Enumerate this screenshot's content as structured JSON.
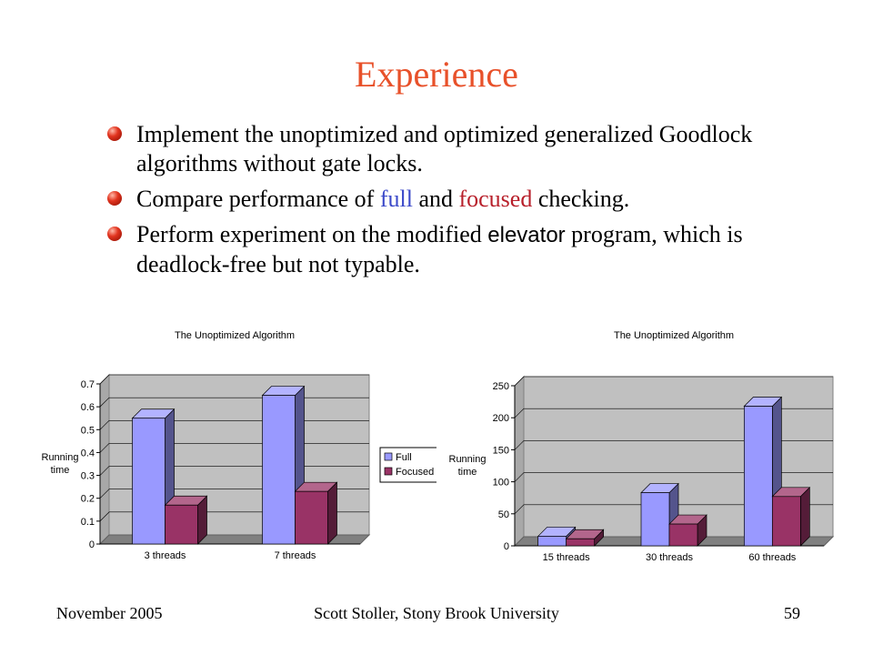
{
  "slide": {
    "title": "Experience",
    "bullets": [
      {
        "text": "Implement the unoptimized and optimized generalized Goodlock algorithms without gate locks."
      },
      {
        "pre": "Compare performance of ",
        "full": "full",
        "mid": " and ",
        "focused": "focused",
        "post": " checking."
      },
      {
        "pre": "Perform experiment on the modified ",
        "code": "elevator",
        "post": " program, which is deadlock-free but not typable."
      }
    ],
    "footer": {
      "date": "November 2005",
      "author": "Scott Stoller, Stony Brook University",
      "page": "59"
    }
  },
  "colors": {
    "title": "#e8512a",
    "full": "#9999ff",
    "focused": "#993366",
    "wall": "#c0c0c0",
    "floor": "#808080"
  },
  "chart_data": [
    {
      "type": "bar",
      "title": "The Unoptimized Algorithm",
      "ylabel": "Running time",
      "categories": [
        "3 threads",
        "7 threads"
      ],
      "series": [
        {
          "name": "Full",
          "values": [
            0.55,
            0.65
          ]
        },
        {
          "name": "Focused",
          "values": [
            0.17,
            0.23
          ]
        }
      ],
      "ylim": [
        0,
        0.7
      ],
      "yticks": [
        "0",
        "0.1",
        "0.2",
        "0.3",
        "0.4",
        "0.5",
        "0.6",
        "0.7"
      ],
      "legend": "right",
      "grid": true
    },
    {
      "type": "bar",
      "title": "The Unoptimized Algorithm",
      "ylabel": "Running time",
      "categories": [
        "15 threads",
        "30 threads",
        "60 threads"
      ],
      "series": [
        {
          "name": "Full",
          "values": [
            15,
            83,
            218
          ]
        },
        {
          "name": "Focused",
          "values": [
            11,
            34,
            77
          ]
        }
      ],
      "ylim": [
        0,
        250
      ],
      "yticks": [
        "0",
        "50",
        "100",
        "150",
        "200",
        "250"
      ],
      "grid": true
    }
  ]
}
